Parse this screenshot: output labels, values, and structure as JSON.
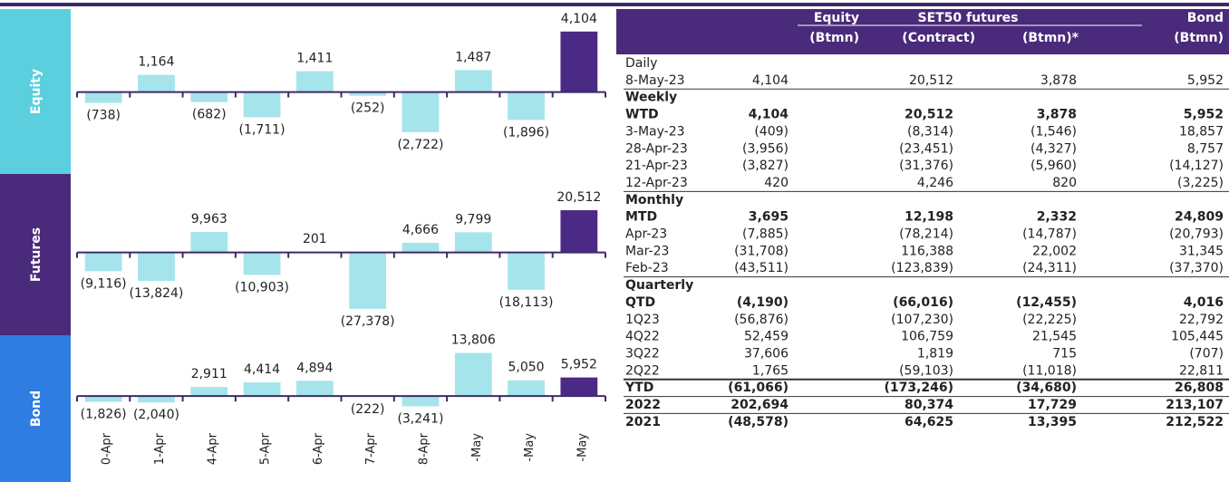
{
  "chart_data": [
    {
      "type": "bar",
      "label": "Equity",
      "band_color": "#5bcfde",
      "values": [
        -738,
        1164,
        -682,
        -1711,
        1411,
        -252,
        -2722,
        1487,
        -1896,
        4104
      ],
      "value_labels": [
        "(738)",
        "1,164",
        "(682)",
        "(1,711)",
        "1,411",
        "(252)",
        "(2,722)",
        "1,487",
        "(1,896)",
        "4,104"
      ],
      "colors": [
        "#a6e4ec",
        "#a6e4ec",
        "#a6e4ec",
        "#a6e4ec",
        "#a6e4ec",
        "#a6e4ec",
        "#a6e4ec",
        "#a6e4ec",
        "#a6e4ec",
        "#4b2a86"
      ],
      "ylim": [
        -3900,
        4400
      ]
    },
    {
      "type": "bar",
      "label": "Futures",
      "band_color": "#4a2a7a",
      "values": [
        -9116,
        -13824,
        9963,
        -10903,
        201,
        -27378,
        4666,
        9799,
        -18113,
        20512
      ],
      "value_labels": [
        "(9,116)",
        "(13,824)",
        "9,963",
        "(10,903)",
        "201",
        "(27,378)",
        "4,666",
        "9,799",
        "(18,113)",
        "20,512"
      ],
      "colors": [
        "#a6e4ec",
        "#a6e4ec",
        "#a6e4ec",
        "#a6e4ec",
        "#a6e4ec",
        "#a6e4ec",
        "#a6e4ec",
        "#a6e4ec",
        "#a6e4ec",
        "#4b2a86"
      ],
      "ylim": [
        -38000,
        28000
      ]
    },
    {
      "type": "bar",
      "label": "Bond",
      "band_color": "#2f7de0",
      "categories": [
        "0-Apr",
        "1-Apr",
        "4-Apr",
        "5-Apr",
        "6-Apr",
        "7-Apr",
        "8-Apr",
        "-May",
        "-May",
        "-May"
      ],
      "values": [
        -1826,
        -2040,
        2911,
        4414,
        4894,
        -222,
        -3241,
        13806,
        5050,
        5952
      ],
      "value_labels": [
        "(1,826)",
        "(2,040)",
        "2,911",
        "4,414",
        "4,894",
        "(222)",
        "(3,241)",
        "13,806",
        "5,050",
        "5,952"
      ],
      "colors": [
        "#a6e4ec",
        "#a6e4ec",
        "#a6e4ec",
        "#a6e4ec",
        "#a6e4ec",
        "#a6e4ec",
        "#a6e4ec",
        "#a6e4ec",
        "#a6e4ec",
        "#4b2a86"
      ],
      "ylim": [
        -9500,
        18000
      ]
    }
  ],
  "table": {
    "header": {
      "top": [
        "Equity",
        "SET50 futures",
        "Bond"
      ],
      "units": [
        "(Btmn)",
        "(Contract)",
        "(Btmn)*",
        "(Btmn)"
      ]
    },
    "rows": [
      {
        "cells": [
          "Daily"
        ],
        "bold": false
      },
      {
        "cells": [
          "8-May-23",
          "4,104",
          "20,512",
          "3,878",
          "5,952"
        ],
        "bold": false
      },
      {
        "cells": [
          "Weekly"
        ],
        "bold": true
      },
      {
        "cells": [
          "WTD",
          "4,104",
          "20,512",
          "3,878",
          "5,952"
        ],
        "bold": true
      },
      {
        "cells": [
          "3-May-23",
          "(409)",
          "(8,314)",
          "(1,546)",
          "18,857"
        ],
        "bold": false
      },
      {
        "cells": [
          "28-Apr-23",
          "(3,956)",
          "(23,451)",
          "(4,327)",
          "8,757"
        ],
        "bold": false
      },
      {
        "cells": [
          "21-Apr-23",
          "(3,827)",
          "(31,376)",
          "(5,960)",
          "(14,127)"
        ],
        "bold": false
      },
      {
        "cells": [
          "12-Apr-23",
          "420",
          "4,246",
          "820",
          "(3,225)"
        ],
        "bold": false
      },
      {
        "cells": [
          "Monthly"
        ],
        "bold": true
      },
      {
        "cells": [
          "MTD",
          "3,695",
          "12,198",
          "2,332",
          "24,809"
        ],
        "bold": true
      },
      {
        "cells": [
          "Apr-23",
          "(7,885)",
          "(78,214)",
          "(14,787)",
          "(20,793)"
        ],
        "bold": false
      },
      {
        "cells": [
          "Mar-23",
          "(31,708)",
          "116,388",
          "22,002",
          "31,345"
        ],
        "bold": false
      },
      {
        "cells": [
          "Feb-23",
          "(43,511)",
          "(123,839)",
          "(24,311)",
          "(37,370)"
        ],
        "bold": false
      },
      {
        "cells": [
          "Quarterly"
        ],
        "bold": true
      },
      {
        "cells": [
          "QTD",
          "(4,190)",
          "(66,016)",
          "(12,455)",
          "4,016"
        ],
        "bold": true
      },
      {
        "cells": [
          "1Q23",
          "(56,876)",
          "(107,230)",
          "(22,225)",
          "22,792"
        ],
        "bold": false
      },
      {
        "cells": [
          "4Q22",
          "52,459",
          "106,759",
          "21,545",
          "105,445"
        ],
        "bold": false
      },
      {
        "cells": [
          "3Q22",
          "37,606",
          "1,819",
          "715",
          "(707)"
        ],
        "bold": false
      },
      {
        "cells": [
          "2Q22",
          "1,765",
          "(59,103)",
          "(11,018)",
          "22,811"
        ],
        "bold": false
      },
      {
        "cells": [
          "YTD",
          "(61,066)",
          "(173,246)",
          "(34,680)",
          "26,808"
        ],
        "bold": true
      },
      {
        "cells": [
          "2022",
          "202,694",
          "80,374",
          "17,729",
          "213,107"
        ],
        "bold": true
      },
      {
        "cells": [
          "2021",
          "(48,578)",
          "64,625",
          "13,395",
          "212,522"
        ],
        "bold": true
      }
    ]
  }
}
